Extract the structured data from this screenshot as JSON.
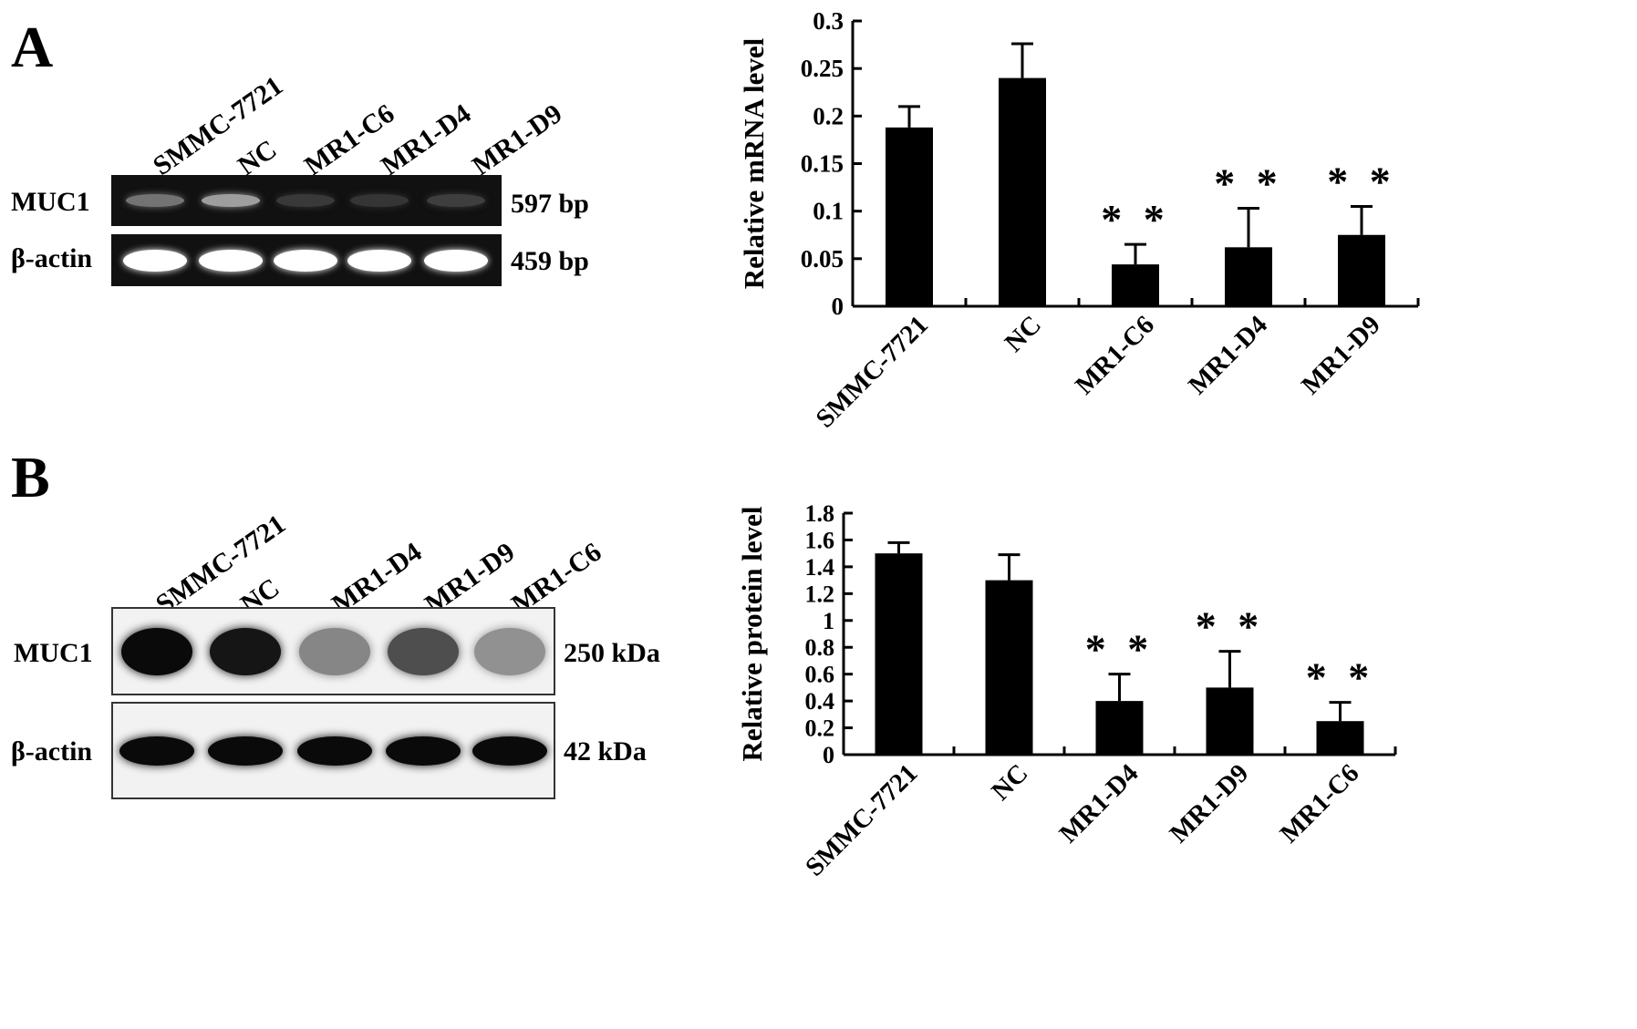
{
  "panels": [
    {
      "letter": "A",
      "gel": {
        "lanes": [
          "SMMC-7721",
          "NC",
          "MR1-C6",
          "MR1-D4",
          "MR1-D9"
        ],
        "rows": [
          {
            "label": "MUC1",
            "size": "597 bp",
            "intensity": [
              0.35,
              0.55,
              0.08,
              0.06,
              0.1
            ]
          },
          {
            "label": "β-actin",
            "size": "459 bp",
            "intensity": [
              1,
              1,
              1,
              1,
              1
            ]
          }
        ]
      }
    },
    {
      "letter": "B",
      "gel": {
        "lanes": [
          "SMMC-7721",
          "NC",
          "MR1-D4",
          "MR1-D9",
          "MR1-C6"
        ],
        "rows": [
          {
            "label": "MUC1",
            "size": "250 kDa",
            "intensity": [
              1,
              0.95,
              0.45,
              0.7,
              0.4
            ]
          },
          {
            "label": "β-actin",
            "size": "42 kDa",
            "intensity": [
              1,
              1,
              1,
              1,
              1
            ]
          }
        ]
      }
    }
  ],
  "chart_data": [
    {
      "type": "bar",
      "title": "",
      "xlabel": "",
      "ylabel": "Relative mRNA level",
      "categories": [
        "SMMC-7721",
        "NC",
        "MR1-C6",
        "MR1-D4",
        "MR1-D9"
      ],
      "values": [
        0.188,
        0.24,
        0.044,
        0.062,
        0.075
      ],
      "errors": [
        0.022,
        0.036,
        0.021,
        0.041,
        0.03
      ],
      "annotations": [
        "",
        "",
        "* *",
        "* *",
        "* *"
      ],
      "ylim": [
        0,
        0.3
      ],
      "yticks": [
        0,
        0.05,
        0.1,
        0.15,
        0.2,
        0.25,
        0.3
      ],
      "ytick_labels": [
        "0",
        "0.05",
        "0.1",
        "0.15",
        "0.2",
        "0.25",
        "0.3"
      ],
      "grid": false,
      "bar_color": "#000000"
    },
    {
      "type": "bar",
      "title": "",
      "xlabel": "",
      "ylabel": "Relative protein level",
      "categories": [
        "SMMC-7721",
        "NC",
        "MR1-D4",
        "MR1-D9",
        "MR1-C6"
      ],
      "values": [
        1.5,
        1.3,
        0.4,
        0.5,
        0.25
      ],
      "errors": [
        0.08,
        0.19,
        0.2,
        0.27,
        0.14
      ],
      "annotations": [
        "",
        "",
        "* *",
        "* *",
        "* *"
      ],
      "ylim": [
        0,
        1.8
      ],
      "yticks": [
        0,
        0.2,
        0.4,
        0.6,
        0.8,
        1.0,
        1.2,
        1.4,
        1.6,
        1.8
      ],
      "ytick_labels": [
        "0",
        "0.2",
        "0.4",
        "0.6",
        "0.8",
        "1",
        "1.2",
        "1.4",
        "1.6",
        "1.8"
      ],
      "grid": false,
      "bar_color": "#000000"
    }
  ]
}
